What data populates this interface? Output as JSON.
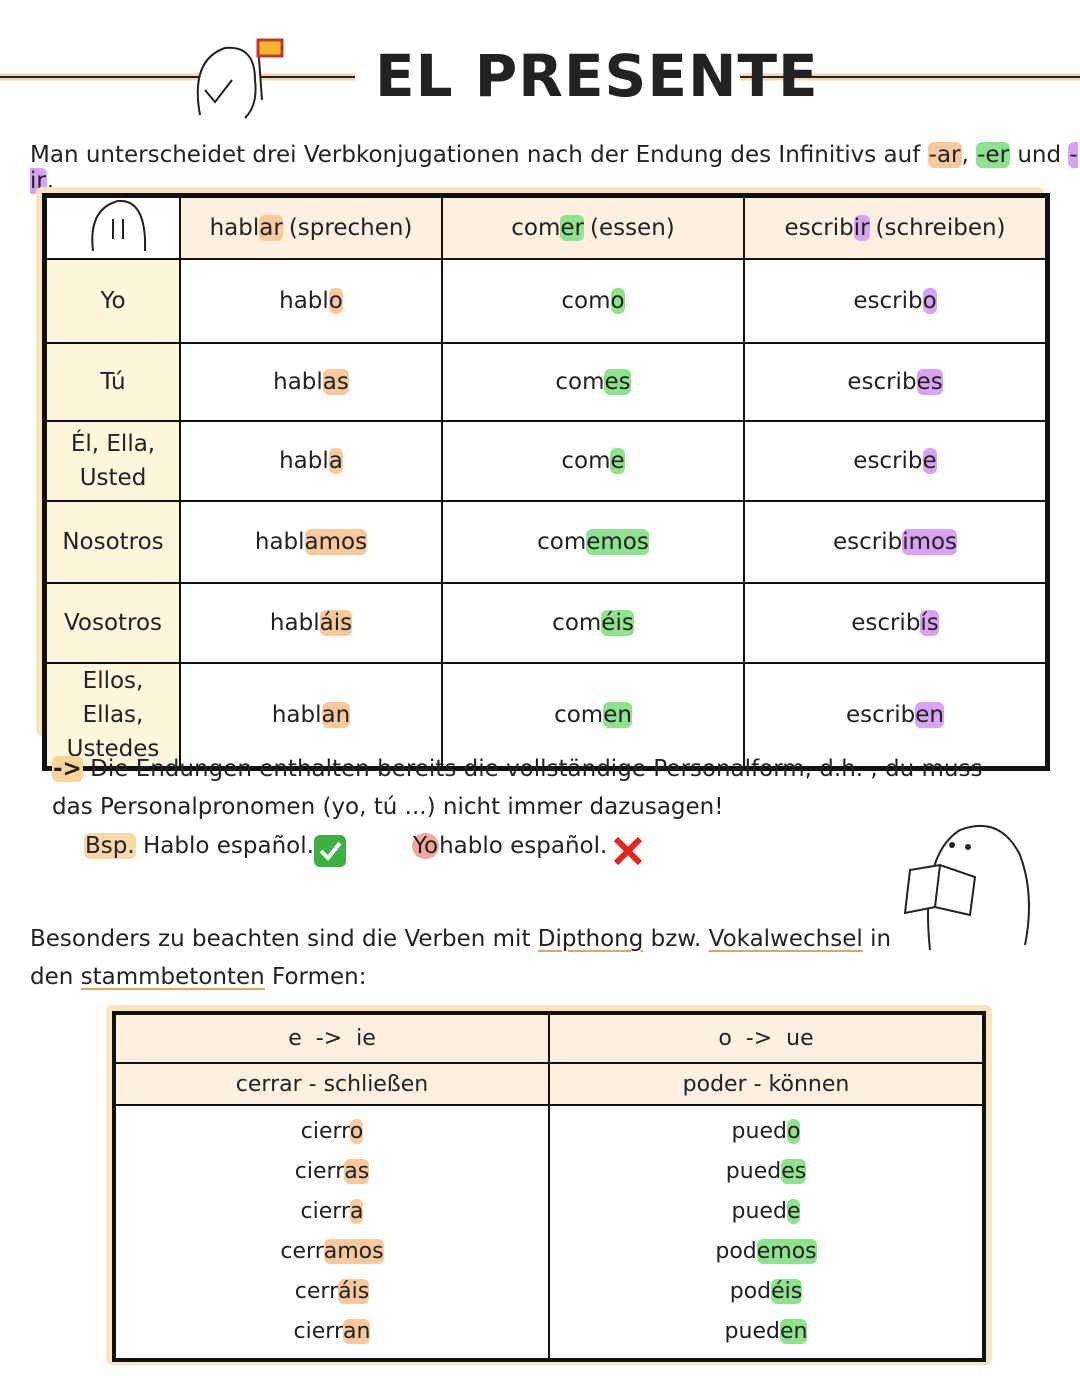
{
  "title": "EL PRESENTE",
  "intro": [
    {
      "t": "Man unterscheidet drei Verbkonjugationen nach der Endung des Infinitivs auf "
    },
    {
      "t": "-ar",
      "hl": "#f8c99c"
    },
    {
      "t": ", "
    },
    {
      "t": "-er",
      "hl": "#8fe38f"
    },
    {
      "t": " und "
    },
    {
      "t": "-ir",
      "hl": "#d8a3f2"
    },
    {
      "t": "."
    }
  ],
  "conjugation_table": {
    "colors": [
      "#f8c99c",
      "#8fe38f",
      "#d8a3f2"
    ],
    "headers": [
      {
        "stem": "habl",
        "ending": "ar",
        "gloss": "(sprechen)"
      },
      {
        "stem": "com",
        "ending": "er",
        "gloss": "(essen)"
      },
      {
        "stem": "escrib",
        "ending": "ir",
        "gloss": "(schreiben)"
      }
    ],
    "rows": [
      {
        "person": "Yo",
        "forms": [
          [
            "habl",
            "o"
          ],
          [
            "com",
            "o"
          ],
          [
            "escrib",
            "o"
          ]
        ]
      },
      {
        "person": "Tú",
        "forms": [
          [
            "habl",
            "as"
          ],
          [
            "com",
            "es"
          ],
          [
            "escrib",
            "es"
          ]
        ]
      },
      {
        "person": "Él, Ella, Usted",
        "forms": [
          [
            "habl",
            "a"
          ],
          [
            "com",
            "e"
          ],
          [
            "escrib",
            "e"
          ]
        ]
      },
      {
        "person": "Nosotros",
        "forms": [
          [
            "habl",
            "amos"
          ],
          [
            "com",
            "emos"
          ],
          [
            "escrib",
            "imos"
          ]
        ]
      },
      {
        "person": "Vosotros",
        "forms": [
          [
            "habl",
            "áis"
          ],
          [
            "com",
            "éis"
          ],
          [
            "escrib",
            "ís"
          ]
        ]
      },
      {
        "person": "Ellos, Ellas, Ustedes",
        "forms": [
          [
            "habl",
            "an"
          ],
          [
            "com",
            "en"
          ],
          [
            "escrib",
            "en"
          ]
        ]
      }
    ]
  },
  "note": {
    "arrow": "->",
    "text": "Die Endungen enthalten bereits die vollständige Personalform, d.h. , du muss das Personalpronomen (yo, tú ...) nicht immer dazusagen!"
  },
  "example": {
    "label": "Bsp.",
    "correct": "Hablo español.",
    "wrong_pronoun": "Yo",
    "wrong_rest": "hablo español."
  },
  "special": [
    {
      "t": "Besonders zu beachten sind die Verben mit "
    },
    {
      "t": "Dipthong",
      "u": true
    },
    {
      "t": " bzw. "
    },
    {
      "t": "Vokalwechsel",
      "u": true
    },
    {
      "t": " in den "
    },
    {
      "t": "stammbetonten",
      "u": true
    },
    {
      "t": " Formen:"
    }
  ],
  "stem_table": [
    {
      "change": "e  ->  ie",
      "verb": "cerrar - schließen",
      "color": "#f8c99c",
      "forms": [
        [
          "cierr",
          "o"
        ],
        [
          "cierr",
          "as"
        ],
        [
          "cierr",
          "a"
        ],
        [
          "cerr",
          "amos"
        ],
        [
          "cerr",
          "áis"
        ],
        [
          "cierr",
          "an"
        ]
      ]
    },
    {
      "change": "o  ->  ue",
      "verb": "poder - können",
      "color": "#8fe38f",
      "forms": [
        [
          "pued",
          "o"
        ],
        [
          "pued",
          "es"
        ],
        [
          "pued",
          "e"
        ],
        [
          "pod",
          "emos"
        ],
        [
          "pod",
          "éis"
        ],
        [
          "pued",
          "en"
        ]
      ]
    }
  ]
}
